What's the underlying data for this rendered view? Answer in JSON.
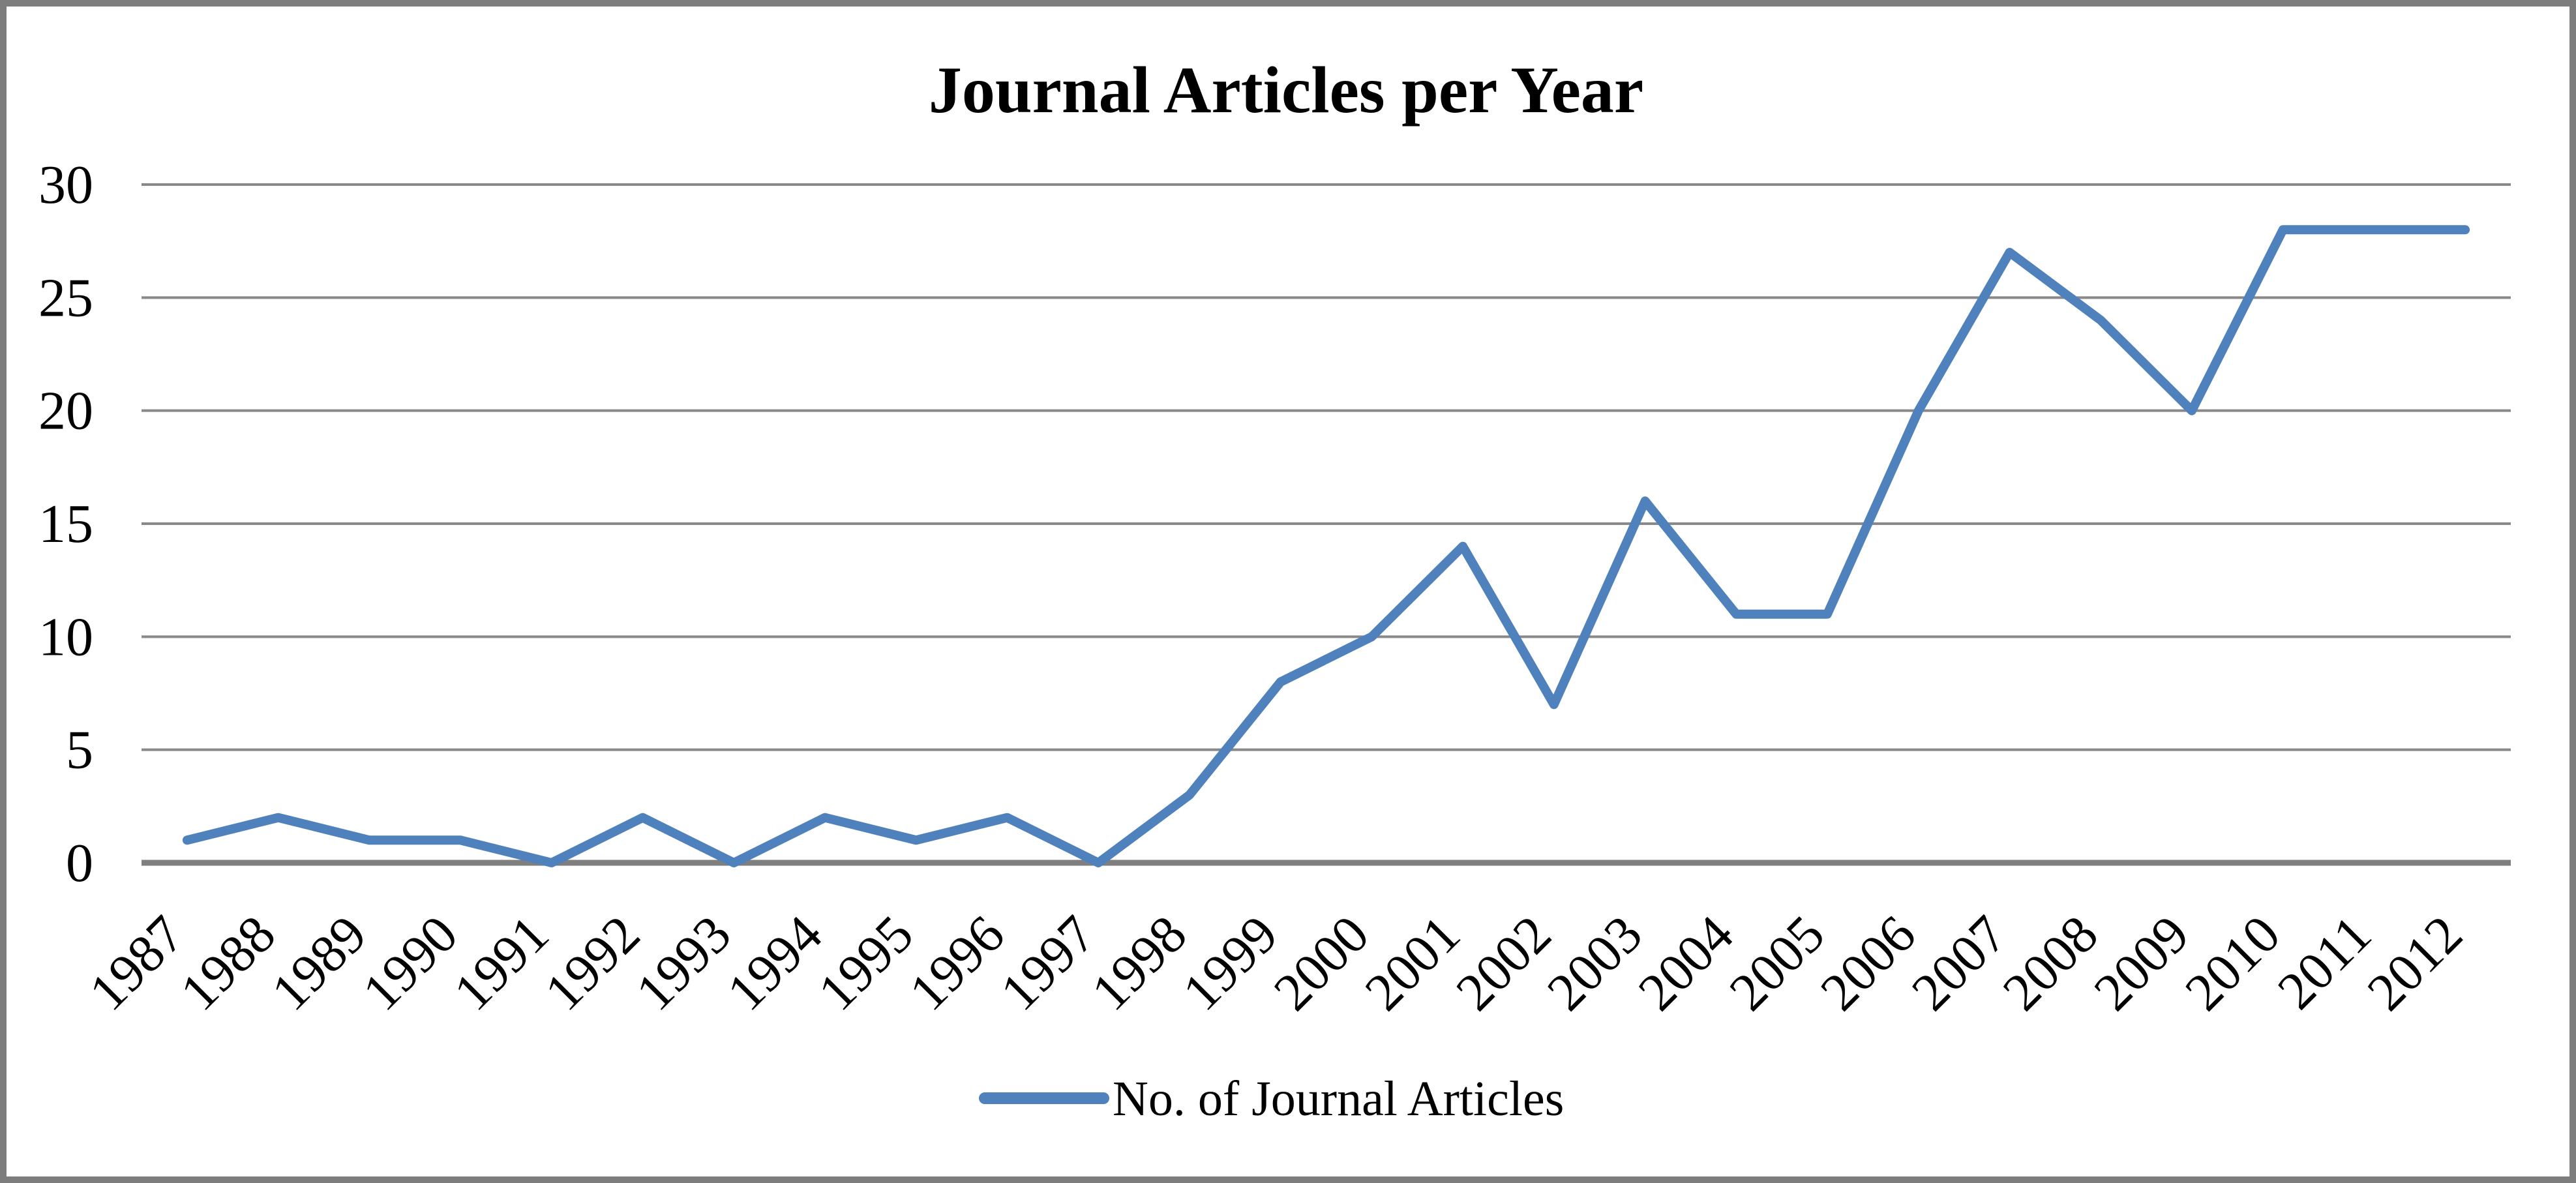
{
  "window": {
    "background": "#ffffff",
    "frame_color": "#7d7d7d"
  },
  "chart_data": {
    "type": "line",
    "title": "Journal Articles per Year",
    "categories": [
      "1987",
      "1988",
      "1989",
      "1990",
      "1991",
      "1992",
      "1993",
      "1994",
      "1995",
      "1996",
      "1997",
      "1998",
      "1999",
      "2000",
      "2001",
      "2002",
      "2003",
      "2004",
      "2005",
      "2006",
      "2007",
      "2008",
      "2009",
      "2010",
      "2011",
      "2012"
    ],
    "series": [
      {
        "name": "No. of Journal Articles",
        "color": "#4F81BD",
        "values": [
          1,
          2,
          1,
          1,
          0,
          2,
          0,
          2,
          1,
          2,
          0,
          3,
          8,
          10,
          14,
          7,
          16,
          11,
          11,
          20,
          27,
          24,
          20,
          28,
          28,
          28
        ]
      }
    ],
    "xlabel": "",
    "ylabel": "",
    "ylim": [
      0,
      30
    ],
    "yticks": [
      0,
      5,
      10,
      15,
      20,
      25,
      30
    ],
    "ytick_labels": [
      "0",
      "5",
      "10",
      "15",
      "20",
      "25",
      "30"
    ],
    "grid": "horizontal",
    "legend_position": "bottom",
    "colors": {
      "gridline": "#898989",
      "axis_line": "#7f7f7f",
      "text": "#000000"
    }
  }
}
